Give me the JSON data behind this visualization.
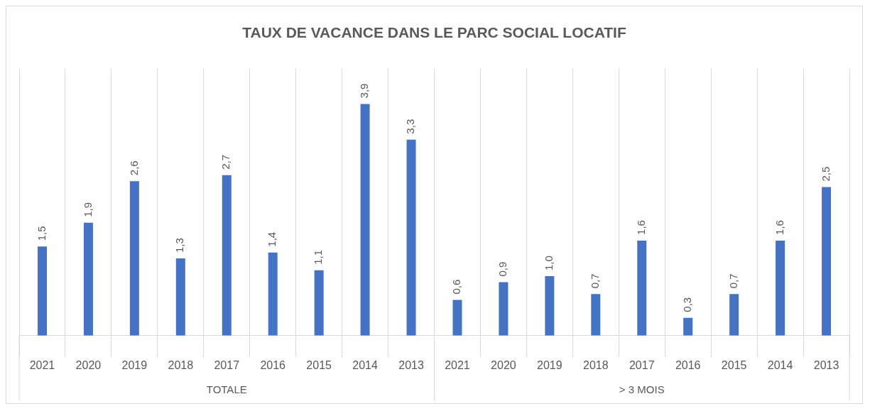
{
  "chart_data": {
    "type": "bar",
    "title": "TAUX DE VACANCE DANS LE PARC SOCIAL LOCATIF",
    "categories": [
      "2021",
      "2020",
      "2019",
      "2018",
      "2017",
      "2016",
      "2015",
      "2014",
      "2013",
      "2021",
      "2020",
      "2019",
      "2018",
      "2017",
      "2016",
      "2015",
      "2014",
      "2013"
    ],
    "values": [
      1.5,
      1.9,
      2.6,
      1.3,
      2.7,
      1.4,
      1.1,
      3.9,
      3.3,
      0.6,
      0.9,
      1.0,
      0.7,
      1.6,
      0.3,
      0.7,
      1.6,
      2.5
    ],
    "value_labels": [
      "1,5",
      "1,9",
      "2,6",
      "1,3",
      "2,7",
      "1,4",
      "1,1",
      "3,9",
      "3,3",
      "0,6",
      "0,9",
      "1,0",
      "0,7",
      "1,6",
      "0,3",
      "0,7",
      "1,6",
      "2,5"
    ],
    "color": "#4472c4",
    "ylim": [
      0,
      4.5
    ],
    "grid": "x",
    "legend": false,
    "annotations": [
      "TOTALE",
      "> 3 MOIS"
    ]
  }
}
